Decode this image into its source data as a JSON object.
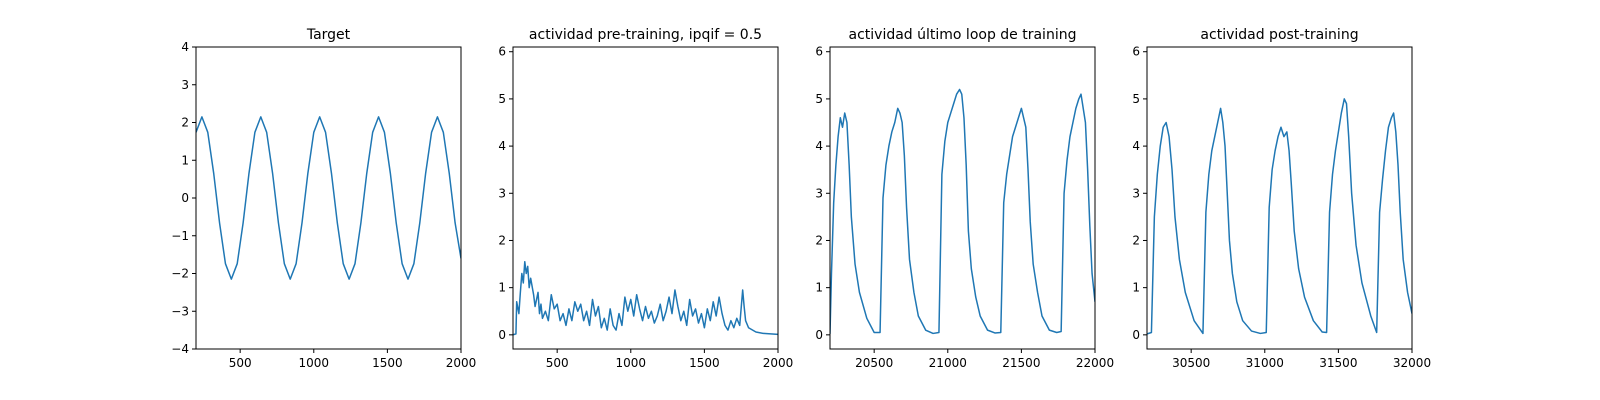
{
  "chart_data": [
    {
      "type": "line",
      "title": "Target",
      "xlabel": "",
      "ylabel": "",
      "xlim": [
        200,
        2000
      ],
      "ylim": [
        -4,
        4
      ],
      "x_ticks": [
        500,
        1000,
        1500,
        2000
      ],
      "y_ticks": [
        -4,
        -3,
        -2,
        -1,
        0,
        1,
        2,
        3,
        4
      ],
      "grid": false,
      "color": "#1f77b4",
      "series": [
        {
          "x": [
            200,
            240,
            280,
            320,
            360,
            400,
            440,
            480,
            520,
            560,
            600,
            640,
            680,
            720,
            760,
            800,
            840,
            880,
            920,
            960,
            1000,
            1040,
            1080,
            1120,
            1160,
            1200,
            1240,
            1280,
            1320,
            1360,
            1400,
            1440,
            1480,
            1520,
            1560,
            1600,
            1640,
            1680,
            1720,
            1760,
            1800,
            1840,
            1880,
            1920,
            1960,
            2000
          ],
          "y": [
            1.74,
            2.15,
            1.74,
            0.66,
            -0.66,
            -1.74,
            -2.15,
            -1.74,
            -0.66,
            0.66,
            1.74,
            2.15,
            1.74,
            0.66,
            -0.66,
            -1.74,
            -2.15,
            -1.74,
            -0.66,
            0.66,
            1.74,
            2.15,
            1.74,
            0.66,
            -0.66,
            -1.74,
            -2.15,
            -1.74,
            -0.66,
            0.66,
            1.74,
            2.15,
            1.74,
            0.66,
            -0.66,
            -1.74,
            -2.15,
            -1.74,
            -0.66,
            0.66,
            1.74,
            2.15,
            1.74,
            0.66,
            -0.66,
            -1.6
          ]
        }
      ]
    },
    {
      "type": "line",
      "title": "actividad pre-training, ipqif = 0.5",
      "xlabel": "",
      "ylabel": "",
      "xlim": [
        200,
        2000
      ],
      "ylim": [
        -0.3,
        6.1
      ],
      "x_ticks": [
        500,
        1000,
        1500,
        2000
      ],
      "y_ticks": [
        0,
        1,
        2,
        3,
        4,
        5,
        6
      ],
      "grid": false,
      "color": "#1f77b4",
      "series": [
        {
          "x": [
            200,
            220,
            225,
            240,
            250,
            260,
            270,
            280,
            290,
            300,
            310,
            320,
            340,
            350,
            370,
            380,
            390,
            400,
            420,
            440,
            460,
            480,
            500,
            520,
            540,
            560,
            580,
            600,
            620,
            640,
            660,
            680,
            700,
            720,
            740,
            760,
            780,
            800,
            820,
            840,
            860,
            880,
            900,
            920,
            940,
            960,
            980,
            1000,
            1020,
            1040,
            1060,
            1080,
            1100,
            1120,
            1140,
            1160,
            1180,
            1200,
            1220,
            1240,
            1260,
            1280,
            1300,
            1320,
            1340,
            1360,
            1380,
            1400,
            1420,
            1440,
            1460,
            1480,
            1500,
            1520,
            1540,
            1560,
            1580,
            1600,
            1620,
            1640,
            1660,
            1680,
            1700,
            1720,
            1740,
            1760,
            1770,
            1780,
            1800,
            1850,
            1900,
            1950,
            2000
          ],
          "y": [
            0.0,
            0.02,
            0.7,
            0.45,
            0.9,
            1.3,
            1.1,
            1.55,
            1.3,
            1.45,
            1.0,
            1.2,
            0.85,
            0.6,
            0.9,
            0.45,
            0.65,
            0.35,
            0.5,
            0.3,
            0.85,
            0.55,
            0.65,
            0.3,
            0.45,
            0.2,
            0.55,
            0.3,
            0.7,
            0.5,
            0.65,
            0.3,
            0.5,
            0.2,
            0.75,
            0.4,
            0.6,
            0.15,
            0.35,
            0.1,
            0.55,
            0.2,
            0.1,
            0.45,
            0.2,
            0.8,
            0.5,
            0.75,
            0.4,
            0.85,
            0.55,
            0.3,
            0.6,
            0.35,
            0.5,
            0.25,
            0.4,
            0.65,
            0.3,
            0.5,
            0.8,
            0.45,
            0.95,
            0.6,
            0.3,
            0.5,
            0.2,
            0.75,
            0.4,
            0.55,
            0.25,
            0.45,
            0.15,
            0.55,
            0.3,
            0.7,
            0.4,
            0.8,
            0.45,
            0.2,
            0.1,
            0.3,
            0.15,
            0.35,
            0.2,
            0.95,
            0.6,
            0.3,
            0.15,
            0.06,
            0.03,
            0.02,
            0.01
          ]
        }
      ]
    },
    {
      "type": "line",
      "title": "actividad último loop de training",
      "xlabel": "",
      "ylabel": "",
      "xlim": [
        20200,
        22000
      ],
      "ylim": [
        -0.3,
        6.1
      ],
      "x_ticks": [
        20500,
        21000,
        21500,
        22000
      ],
      "y_ticks": [
        0,
        1,
        2,
        3,
        4,
        5,
        6
      ],
      "grid": false,
      "color": "#1f77b4",
      "series": [
        {
          "x": [
            20200,
            20210,
            20225,
            20240,
            20255,
            20270,
            20285,
            20300,
            20315,
            20330,
            20345,
            20370,
            20400,
            20450,
            20500,
            20540,
            20560,
            20580,
            20600,
            20620,
            20640,
            20660,
            20675,
            20690,
            20705,
            20720,
            20740,
            20770,
            20800,
            20850,
            20900,
            20940,
            20960,
            20980,
            21000,
            21020,
            21040,
            21060,
            21080,
            21095,
            21110,
            21125,
            21140,
            21160,
            21190,
            21220,
            21270,
            21320,
            21360,
            21380,
            21400,
            21420,
            21440,
            21460,
            21480,
            21500,
            21515,
            21530,
            21545,
            21560,
            21580,
            21610,
            21640,
            21690,
            21740,
            21770,
            21790,
            21810,
            21830,
            21850,
            21870,
            21890,
            21905,
            21920,
            21935,
            21950,
            21965,
            21980,
            22000
          ],
          "y": [
            0.02,
            1.3,
            2.8,
            3.6,
            4.2,
            4.6,
            4.4,
            4.7,
            4.5,
            3.6,
            2.5,
            1.5,
            0.9,
            0.35,
            0.05,
            0.05,
            2.9,
            3.6,
            4.0,
            4.3,
            4.5,
            4.8,
            4.7,
            4.5,
            3.8,
            2.7,
            1.6,
            0.9,
            0.4,
            0.1,
            0.03,
            0.05,
            3.4,
            4.1,
            4.5,
            4.7,
            4.9,
            5.1,
            5.2,
            5.1,
            4.6,
            3.6,
            2.2,
            1.4,
            0.8,
            0.4,
            0.1,
            0.04,
            0.05,
            2.8,
            3.4,
            3.8,
            4.2,
            4.4,
            4.6,
            4.8,
            4.6,
            4.4,
            3.5,
            2.4,
            1.5,
            0.9,
            0.4,
            0.1,
            0.05,
            0.07,
            3.0,
            3.7,
            4.2,
            4.5,
            4.8,
            5.0,
            5.1,
            4.8,
            4.5,
            3.5,
            2.3,
            1.3,
            0.7
          ]
        }
      ]
    },
    {
      "type": "line",
      "title": "actividad post-training",
      "xlabel": "",
      "ylabel": "",
      "xlim": [
        30200,
        32000
      ],
      "ylim": [
        -0.3,
        6.1
      ],
      "x_ticks": [
        30500,
        31000,
        31500,
        32000
      ],
      "y_ticks": [
        0,
        1,
        2,
        3,
        4,
        5,
        6
      ],
      "grid": false,
      "color": "#1f77b4",
      "series": [
        {
          "x": [
            30200,
            30230,
            30250,
            30270,
            30290,
            30310,
            30330,
            30350,
            30370,
            30390,
            30420,
            30460,
            30520,
            30580,
            30600,
            30620,
            30640,
            30660,
            30680,
            30700,
            30715,
            30730,
            30745,
            30760,
            30780,
            30810,
            30850,
            30910,
            30970,
            31010,
            31030,
            31050,
            31070,
            31090,
            31110,
            31130,
            31150,
            31165,
            31180,
            31200,
            31230,
            31270,
            31330,
            31390,
            31420,
            31440,
            31460,
            31480,
            31500,
            31520,
            31540,
            31555,
            31570,
            31590,
            31620,
            31660,
            31720,
            31760,
            31780,
            31800,
            31820,
            31840,
            31860,
            31875,
            31890,
            31905,
            31920,
            31940,
            31970,
            32000
          ],
          "y": [
            0.02,
            0.05,
            2.5,
            3.4,
            4.0,
            4.4,
            4.5,
            4.2,
            3.5,
            2.5,
            1.6,
            0.9,
            0.3,
            0.03,
            2.6,
            3.4,
            3.9,
            4.2,
            4.5,
            4.8,
            4.5,
            4.0,
            3.0,
            2.0,
            1.3,
            0.7,
            0.3,
            0.08,
            0.03,
            0.05,
            2.7,
            3.5,
            3.9,
            4.2,
            4.4,
            4.2,
            4.3,
            3.9,
            3.2,
            2.2,
            1.4,
            0.8,
            0.3,
            0.06,
            0.05,
            2.6,
            3.4,
            3.9,
            4.3,
            4.7,
            5.0,
            4.9,
            4.2,
            3.0,
            1.9,
            1.1,
            0.4,
            0.05,
            2.6,
            3.3,
            3.9,
            4.4,
            4.6,
            4.7,
            4.3,
            3.6,
            2.6,
            1.6,
            0.9,
            0.45
          ]
        }
      ]
    }
  ]
}
